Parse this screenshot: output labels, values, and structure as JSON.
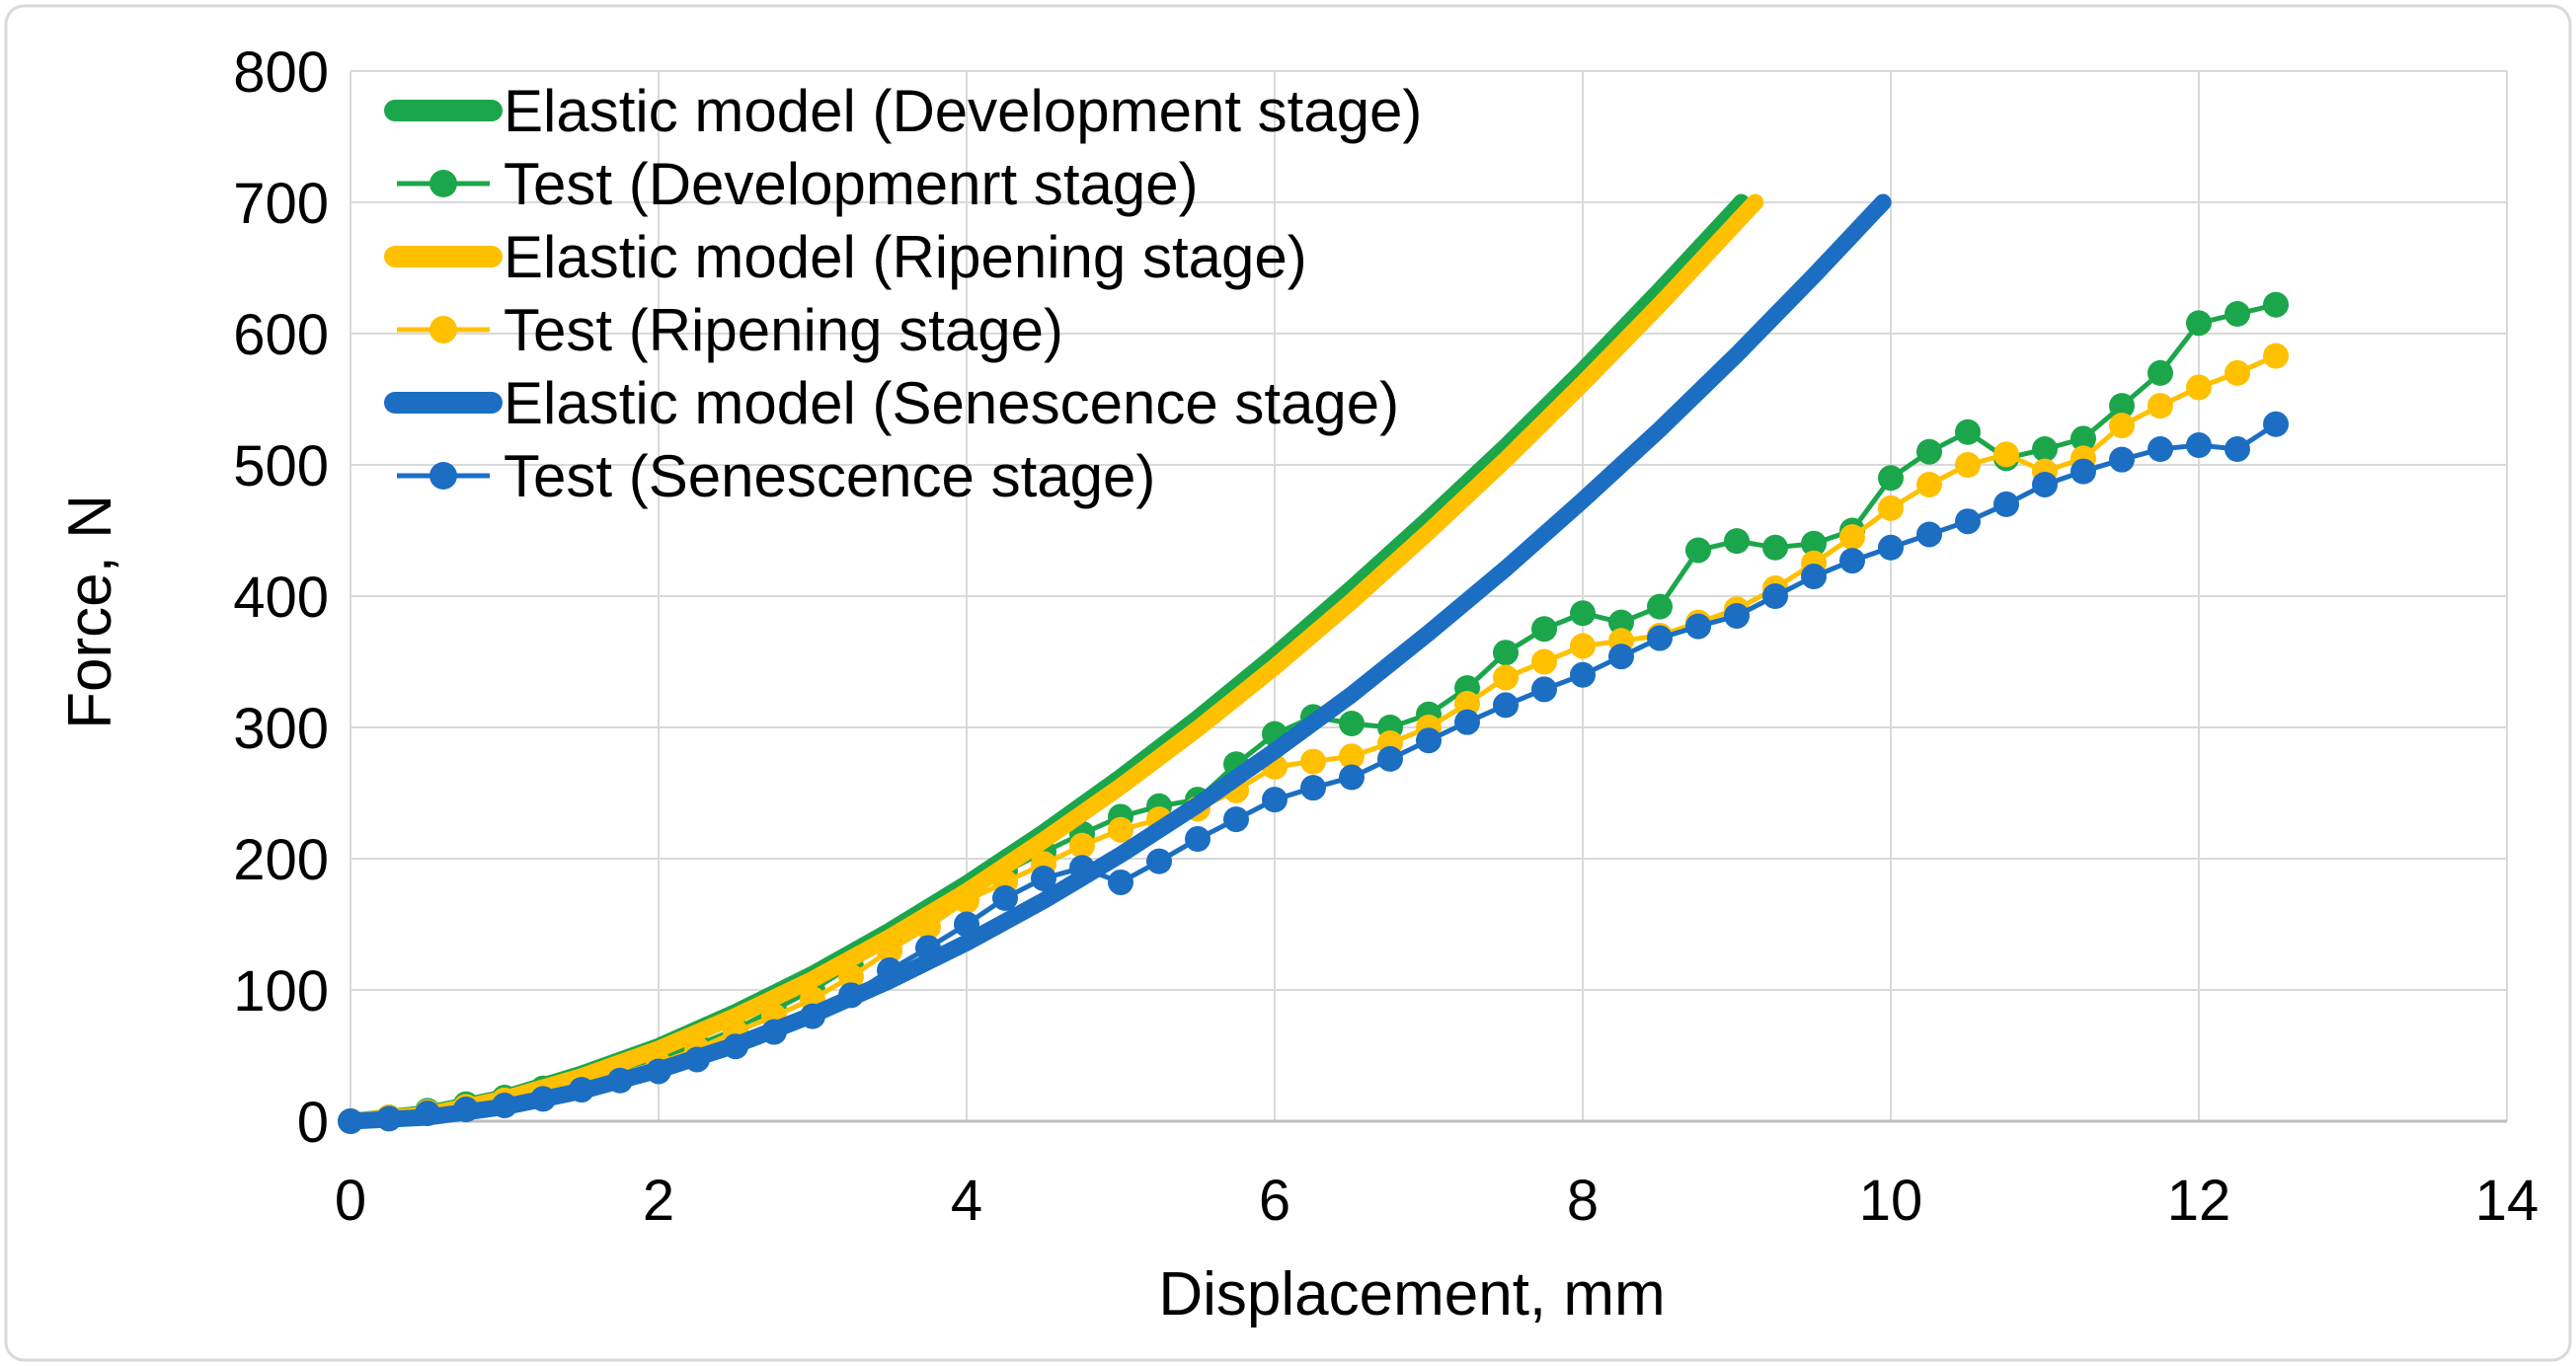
{
  "figure": {
    "background": "#ffffff",
    "border_color": "#d9d9d9",
    "grid_color": "#d9d9d9",
    "axis_line_color": "#bfbfbf"
  },
  "chart_data": {
    "type": "line",
    "title": "",
    "xlabel": "Displacement, mm",
    "ylabel": "Force, N",
    "xlim": [
      0,
      14
    ],
    "ylim": [
      0,
      800
    ],
    "x_ticks": [
      0,
      2,
      4,
      6,
      8,
      10,
      12,
      14
    ],
    "y_ticks": [
      0,
      100,
      200,
      300,
      400,
      500,
      600,
      700,
      800
    ],
    "grid": true,
    "legend_position": "top-left",
    "series": [
      {
        "name": "Elastic model (Development stage)",
        "color": "#1ca64b",
        "style": "solid",
        "x": [
          0,
          0.5,
          1,
          1.5,
          2,
          2.5,
          3,
          3.5,
          4,
          4.5,
          5,
          5.5,
          6,
          6.5,
          7,
          7.5,
          8,
          8.5,
          9,
          9.03
        ],
        "y": [
          0,
          6,
          18,
          36,
          57,
          83,
          112,
          145,
          181,
          220,
          262,
          307,
          355,
          406,
          459,
          514,
          572,
          633,
          696,
          700
        ]
      },
      {
        "name": "Test (Developmenrt stage)",
        "color": "#1ca64b",
        "style": "dotted",
        "x": [
          0,
          0.25,
          0.5,
          0.75,
          1,
          1.25,
          1.5,
          1.75,
          2,
          2.25,
          2.5,
          2.75,
          3,
          3.25,
          3.5,
          3.75,
          4,
          4.25,
          4.5,
          4.75,
          5,
          5.25,
          5.5,
          5.75,
          6,
          6.25,
          6.5,
          6.75,
          7,
          7.25,
          7.5,
          7.75,
          8,
          8.25,
          8.5,
          8.75,
          9,
          9.25,
          9.5,
          9.75,
          10,
          10.25,
          10.5,
          10.75,
          11,
          11.25,
          11.5,
          11.75,
          12,
          12.25,
          12.5
        ],
        "y": [
          0,
          3,
          8,
          13,
          18,
          25,
          32,
          40,
          48,
          58,
          70,
          85,
          100,
          118,
          138,
          157,
          175,
          190,
          205,
          219,
          232,
          240,
          245,
          272,
          295,
          308,
          303,
          300,
          310,
          330,
          357,
          375,
          387,
          380,
          392,
          435,
          442,
          437,
          440,
          450,
          490,
          510,
          525,
          505,
          512,
          520,
          545,
          570,
          608,
          615,
          622
        ]
      },
      {
        "name": "Elastic model (Ripening stage)",
        "color": "#ffc000",
        "style": "solid",
        "x": [
          0,
          0.5,
          1,
          1.5,
          2,
          2.5,
          3,
          3.5,
          4,
          4.5,
          5,
          5.5,
          6,
          6.5,
          7,
          7.5,
          8,
          8.5,
          9,
          9.12
        ],
        "y": [
          0,
          5,
          17,
          34,
          55,
          80,
          108,
          140,
          175,
          214,
          255,
          299,
          346,
          396,
          449,
          504,
          562,
          622,
          685,
          700
        ]
      },
      {
        "name": "Test (Ripening stage)",
        "color": "#ffc000",
        "style": "dotted",
        "x": [
          0,
          0.25,
          0.5,
          0.75,
          1,
          1.25,
          1.5,
          1.75,
          2,
          2.25,
          2.5,
          2.75,
          3,
          3.25,
          3.5,
          3.75,
          4,
          4.25,
          4.5,
          4.75,
          5,
          5.25,
          5.5,
          5.75,
          6,
          6.25,
          6.5,
          6.75,
          7,
          7.25,
          7.5,
          7.75,
          8,
          8.25,
          8.5,
          8.75,
          9,
          9.25,
          9.5,
          9.75,
          10,
          10.25,
          10.5,
          10.75,
          11,
          11.25,
          11.5,
          11.75,
          12,
          12.25,
          12.5
        ],
        "y": [
          0,
          3,
          7,
          11,
          16,
          22,
          29,
          36,
          44,
          55,
          68,
          80,
          93,
          110,
          130,
          148,
          168,
          182,
          196,
          210,
          222,
          230,
          238,
          252,
          270,
          274,
          278,
          288,
          300,
          318,
          338,
          350,
          362,
          366,
          370,
          380,
          390,
          406,
          425,
          445,
          467,
          485,
          500,
          508,
          495,
          505,
          530,
          545,
          559,
          570,
          583
        ]
      },
      {
        "name": "Elastic model (Senescence stage)",
        "color": "#1b6ec2",
        "style": "solid",
        "x": [
          0,
          0.5,
          1,
          1.5,
          2,
          2.5,
          3,
          3.5,
          4,
          4.5,
          5,
          5.5,
          6,
          6.5,
          7,
          7.5,
          8,
          8.5,
          9,
          9.5,
          9.95
        ],
        "y": [
          0,
          3,
          11,
          23,
          39,
          58,
          81,
          107,
          136,
          168,
          203,
          241,
          282,
          325,
          372,
          421,
          473,
          527,
          584,
          644,
          700
        ]
      },
      {
        "name": "Test (Senescence stage)",
        "color": "#1b6ec2",
        "style": "dotted",
        "x": [
          0,
          0.25,
          0.5,
          0.75,
          1,
          1.25,
          1.5,
          1.75,
          2,
          2.25,
          2.5,
          2.75,
          3,
          3.25,
          3.5,
          3.75,
          4,
          4.25,
          4.5,
          4.75,
          5,
          5.25,
          5.5,
          5.75,
          6,
          6.25,
          6.5,
          6.75,
          7,
          7.25,
          7.5,
          7.75,
          8,
          8.25,
          8.5,
          8.75,
          9,
          9.25,
          9.5,
          9.75,
          10,
          10.25,
          10.5,
          10.75,
          11,
          11.25,
          11.5,
          11.75,
          12,
          12.25,
          12.5
        ],
        "y": [
          0,
          2,
          6,
          9,
          12,
          17,
          24,
          31,
          38,
          47,
          57,
          68,
          80,
          96,
          115,
          132,
          150,
          170,
          185,
          193,
          182,
          198,
          215,
          230,
          245,
          254,
          262,
          276,
          290,
          304,
          317,
          329,
          340,
          354,
          368,
          377,
          385,
          400,
          415,
          427,
          437,
          447,
          457,
          470,
          485,
          495,
          504,
          512,
          515,
          512,
          531
        ]
      }
    ]
  }
}
